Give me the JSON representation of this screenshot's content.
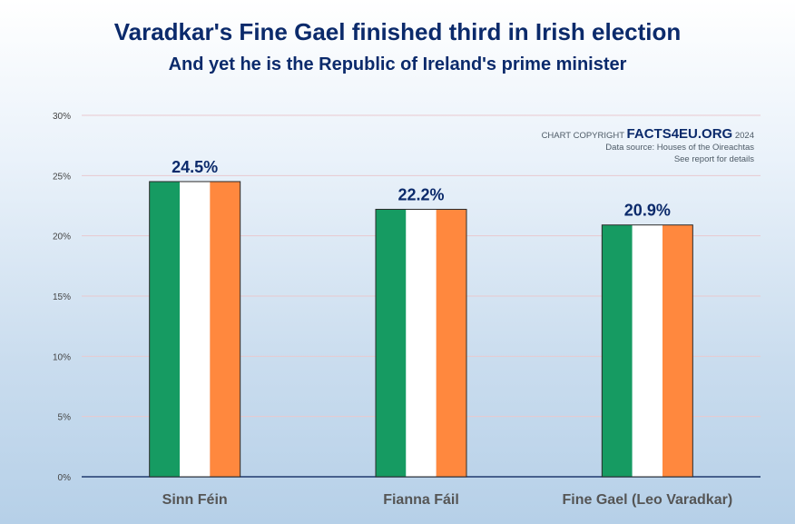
{
  "header": {
    "title": "Varadkar's Fine Gael finished third in Irish election",
    "subtitle": "And yet he is the Republic of Ireland's prime minister"
  },
  "credits": {
    "copyright_prefix": "CHART COPYRIGHT",
    "brand": "FACTS4EU.ORG",
    "year": "2024",
    "source": "Data source: Houses of the Oireachtas",
    "note": "See report for details"
  },
  "colors": {
    "green": "#169b62",
    "white": "#ffffff",
    "orange": "#ff883e",
    "title": "#0b2a6b"
  },
  "chart_data": {
    "type": "bar",
    "title": "Varadkar's Fine Gael finished third in Irish election",
    "subtitle": "And yet he is the Republic of Ireland's prime minister",
    "categories": [
      "Sinn Féin",
      "Fianna Fáil",
      "Fine Gael (Leo Varadkar)"
    ],
    "values": [
      24.5,
      22.2,
      20.9
    ],
    "data_labels": [
      "24.5%",
      "22.2%",
      "20.9%"
    ],
    "yticks": [
      0,
      5,
      10,
      15,
      20,
      25,
      30
    ],
    "ytick_labels": [
      "0%",
      "5%",
      "10%",
      "15%",
      "20%",
      "25%",
      "30%"
    ],
    "ylim": [
      0,
      30
    ],
    "xlabel": "",
    "ylabel": "",
    "grid": true
  }
}
